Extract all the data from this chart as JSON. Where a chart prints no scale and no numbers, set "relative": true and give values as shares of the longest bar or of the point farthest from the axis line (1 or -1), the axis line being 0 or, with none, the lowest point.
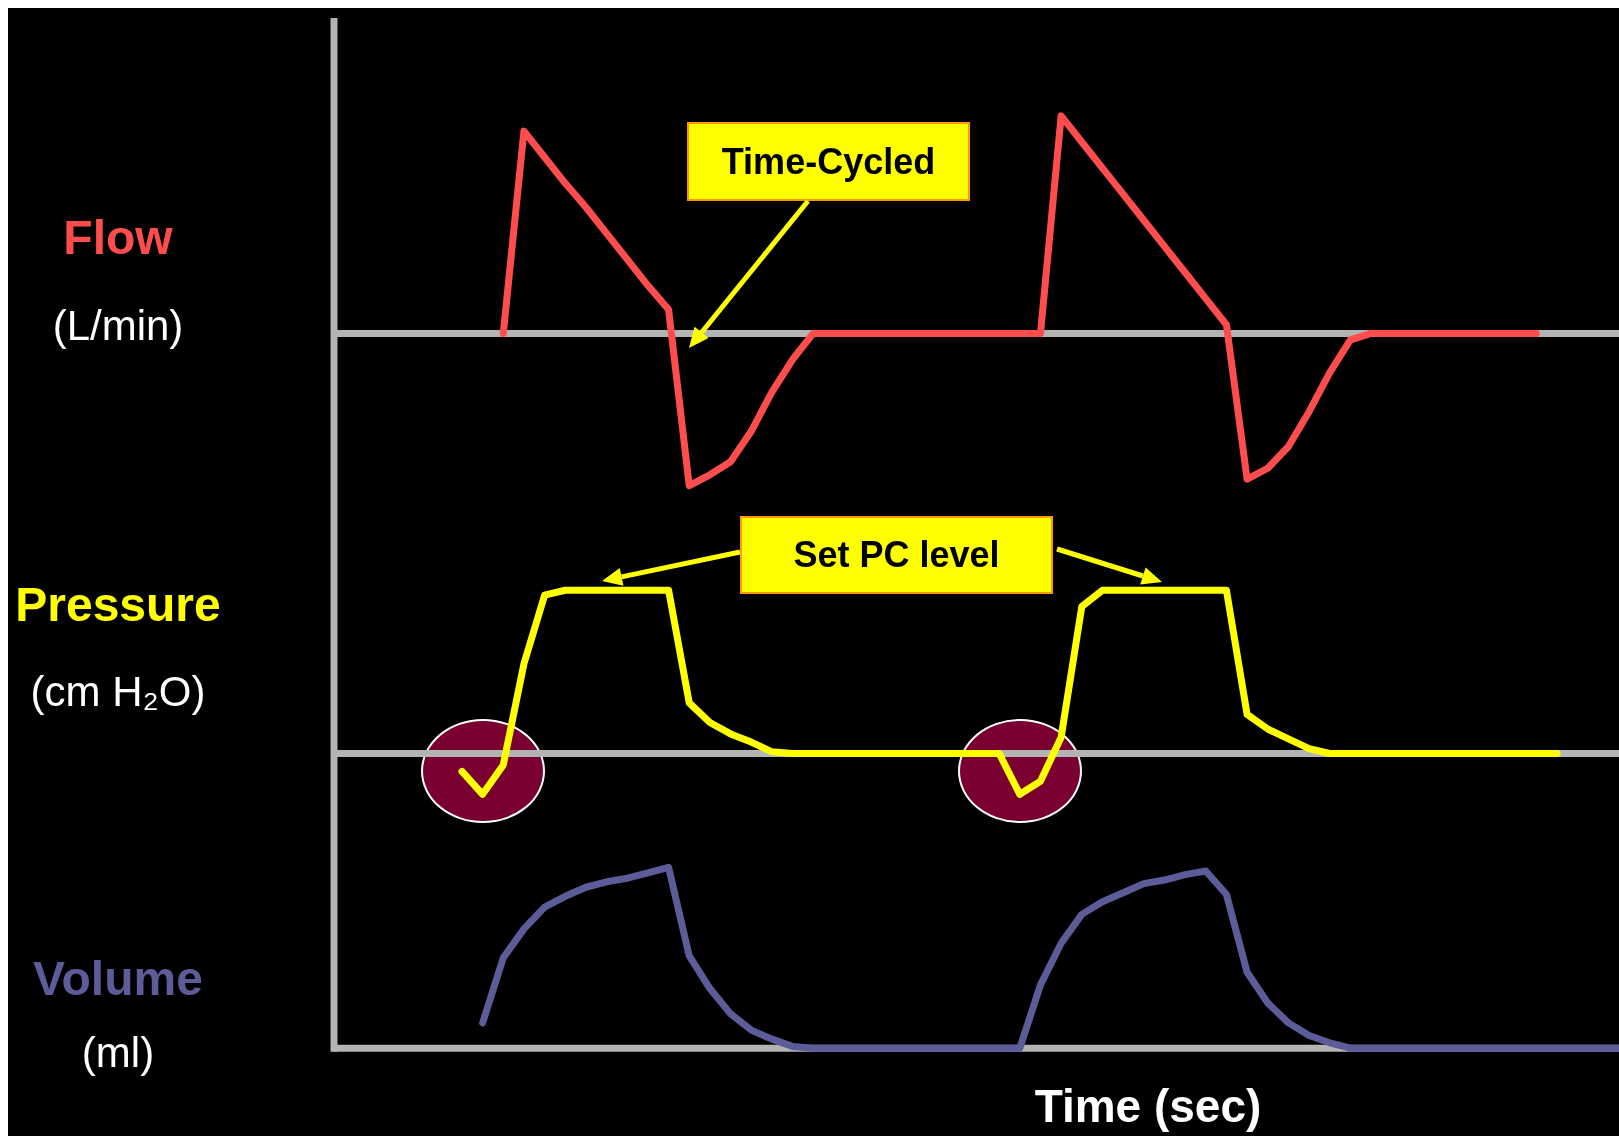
{
  "chart_data": [
    {
      "type": "line",
      "ylabel": "Flow (L/min)",
      "relative": true,
      "annotations": [
        "Time-Cycled"
      ],
      "categories": [
        null,
        null,
        null,
        null,
        null,
        null,
        null,
        null,
        null,
        null,
        null,
        null,
        null,
        null,
        null,
        null,
        null,
        null,
        null,
        null,
        null,
        null,
        null,
        null,
        null,
        null,
        null,
        null,
        null,
        null,
        null,
        null,
        null,
        null,
        null,
        null,
        null,
        null,
        null,
        null,
        null,
        null,
        null,
        null,
        null,
        null,
        null,
        null,
        null,
        null,
        null,
        null,
        null,
        null,
        null,
        null,
        null,
        null,
        null,
        null,
        null,
        null,
        null
      ],
      "series": [
        {
          "color": "#ff4d4d",
          "values": [
            null,
            null,
            null,
            null,
            null,
            null,
            null,
            null,
            0,
            0.93,
            0.81,
            0.69,
            0.58,
            0.46,
            0.34,
            0.22,
            0.11,
            -0.7,
            -0.65,
            -0.59,
            -0.45,
            -0.27,
            -0.12,
            0,
            0,
            0,
            0,
            0,
            0,
            0,
            0,
            0,
            0,
            0,
            0,
            1,
            0.88,
            0.76,
            0.64,
            0.52,
            0.4,
            0.28,
            0.16,
            0.04,
            -0.67,
            -0.62,
            -0.52,
            -0.36,
            -0.18,
            -0.03,
            0,
            0,
            0,
            0,
            0,
            0,
            0,
            0,
            0,
            null,
            null,
            null,
            null
          ]
        }
      ]
    },
    {
      "type": "line",
      "ylabel": "Pressure (cm H₂O)",
      "relative": true,
      "annotations": [
        "Set PC level"
      ],
      "categories": [
        null,
        null,
        null,
        null,
        null,
        null,
        null,
        null,
        null,
        null,
        null,
        null,
        null,
        null,
        null,
        null,
        null,
        null,
        null,
        null,
        null,
        null,
        null,
        null,
        null,
        null,
        null,
        null,
        null,
        null,
        null,
        null,
        null,
        null,
        null,
        null,
        null,
        null,
        null,
        null,
        null,
        null,
        null,
        null,
        null,
        null,
        null,
        null,
        null,
        null,
        null,
        null,
        null,
        null,
        null,
        null,
        null,
        null,
        null,
        null,
        null,
        null,
        null
      ],
      "series": [
        {
          "color": "#ffff00",
          "values": [
            null,
            null,
            null,
            null,
            null,
            null,
            -0.11,
            -0.25,
            -0.07,
            0.55,
            0.97,
            1,
            1,
            1,
            1,
            1,
            1,
            0.31,
            0.19,
            0.12,
            0.07,
            0.01,
            0,
            0,
            0,
            0,
            0,
            0,
            0,
            0,
            0,
            0,
            0,
            -0.25,
            -0.17,
            0.1,
            0.9,
            1,
            1,
            1,
            1,
            1,
            1,
            1,
            0.24,
            0.15,
            0.09,
            0.03,
            0,
            0,
            0,
            0,
            0,
            0,
            0,
            0,
            0,
            0,
            0,
            0,
            null,
            null,
            null
          ]
        }
      ]
    },
    {
      "type": "line",
      "ylabel": "Volume (ml)",
      "xlabel": "Time (sec)",
      "relative": true,
      "categories": [
        null,
        null,
        null,
        null,
        null,
        null,
        null,
        null,
        null,
        null,
        null,
        null,
        null,
        null,
        null,
        null,
        null,
        null,
        null,
        null,
        null,
        null,
        null,
        null,
        null,
        null,
        null,
        null,
        null,
        null,
        null,
        null,
        null,
        null,
        null,
        null,
        null,
        null,
        null,
        null,
        null,
        null,
        null,
        null,
        null,
        null,
        null,
        null,
        null,
        null,
        null,
        null,
        null,
        null,
        null,
        null,
        null,
        null,
        null,
        null,
        null,
        null,
        null
      ],
      "series": [
        {
          "color": "#5c5c99",
          "values": [
            null,
            null,
            null,
            null,
            null,
            null,
            null,
            0.14,
            0.5,
            0.66,
            0.78,
            0.84,
            0.89,
            0.92,
            0.94,
            0.97,
            1,
            0.51,
            0.33,
            0.19,
            0.1,
            0.05,
            0.01,
            0,
            0,
            0,
            0,
            0,
            0,
            0,
            0,
            0,
            0,
            0,
            0.35,
            0.58,
            0.74,
            0.81,
            0.86,
            0.91,
            0.93,
            0.96,
            0.98,
            0.85,
            0.42,
            0.25,
            0.14,
            0.07,
            0.03,
            0,
            0,
            0,
            0,
            0,
            0,
            0,
            0,
            0,
            0,
            0,
            0,
            0,
            0
          ]
        }
      ]
    }
  ]
}
